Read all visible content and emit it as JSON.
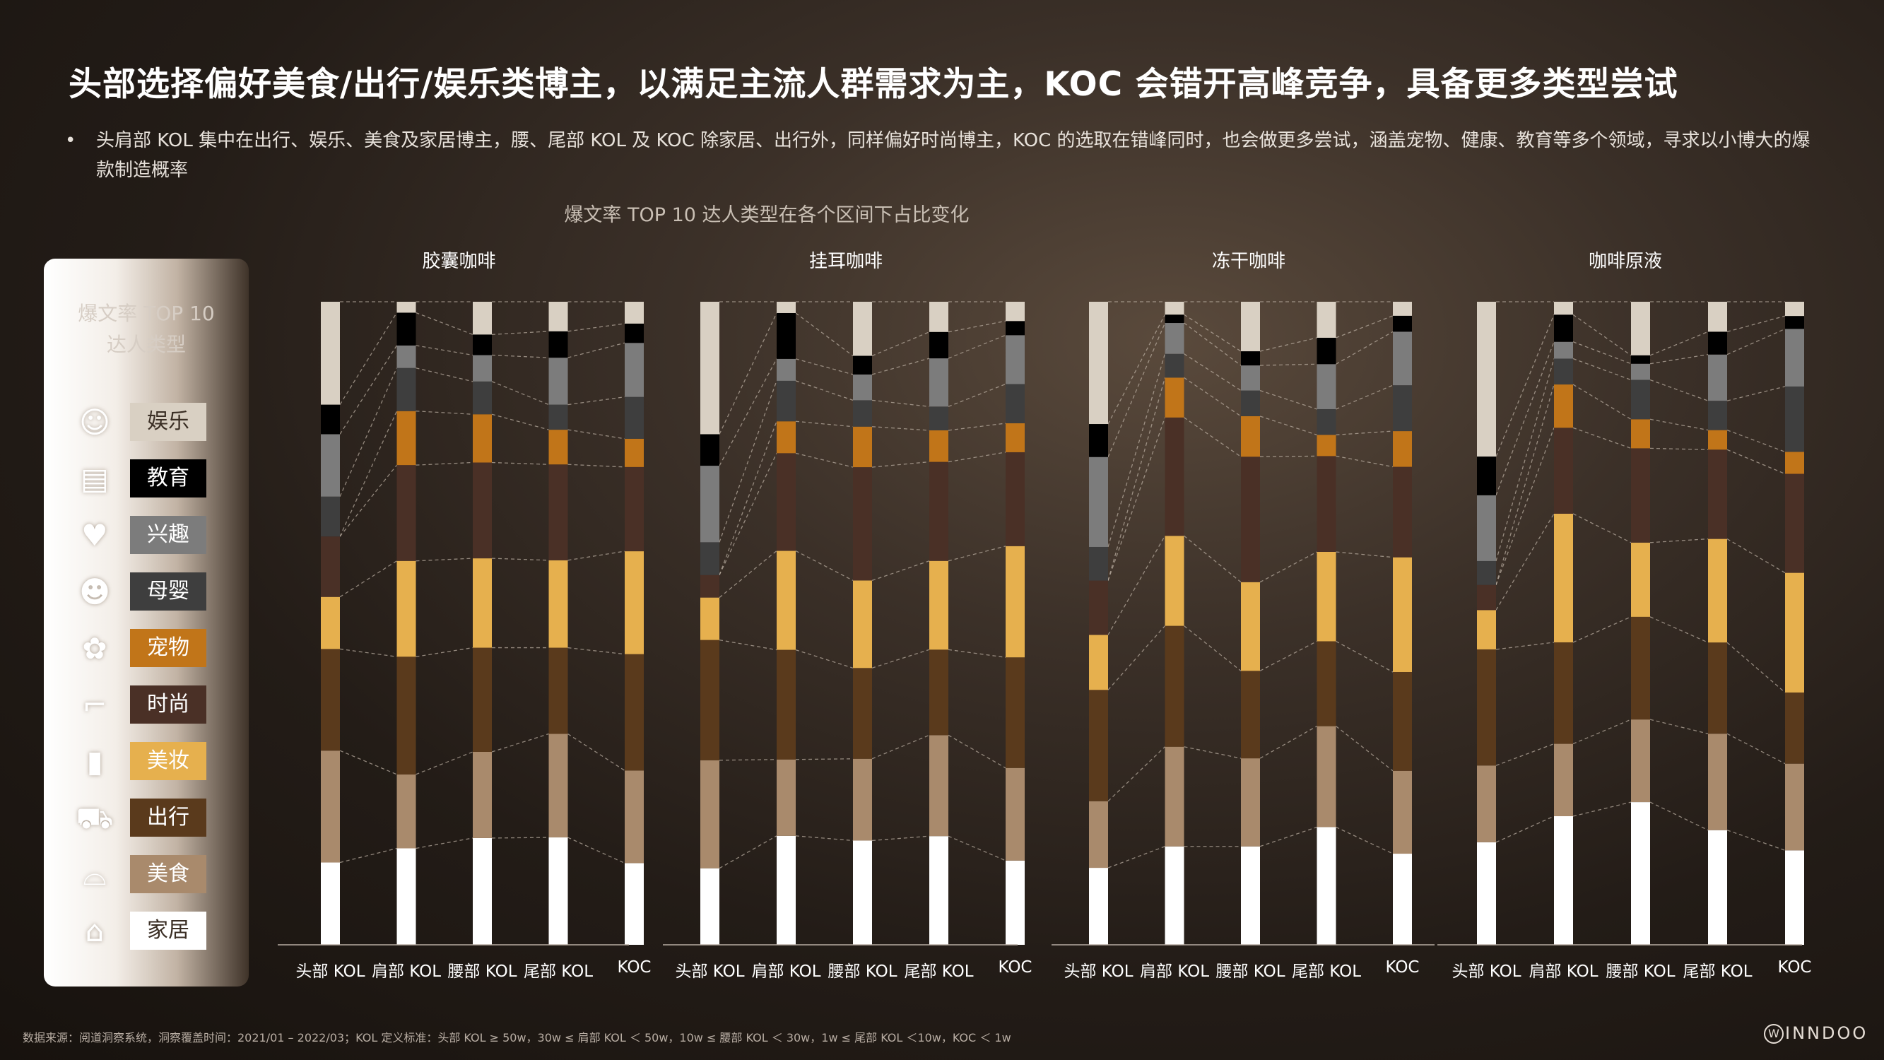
{
  "title": "头部选择偏好美食/出行/娱乐类博主，以满足主流人群需求为主，KOC 会错开高峰竞争，具备更多类型尝试",
  "bullet": "头肩部 KOL 集中在出行、娱乐、美食及家居博主，腰、尾部 KOL 及 KOC 除家居、出行外，同样偏好时尚博主，KOC 的选取在错峰同时，也会做更多尝试，涵盖宠物、健康、教育等多个领域，寻求以小博大的爆款制造概率",
  "legend": {
    "title_line1": "爆文率 TOP 10",
    "title_line2": "达人类型",
    "items": [
      {
        "label": "娱乐",
        "icon": "smiley-icon",
        "glyph": "☺",
        "color": "#d9d0c3",
        "text_color": "#3a2e24"
      },
      {
        "label": "教育",
        "icon": "books-icon",
        "glyph": "▤",
        "color": "#000000",
        "text_color": "#ffffff"
      },
      {
        "label": "兴趣",
        "icon": "heart-chat-icon",
        "glyph": "♥",
        "color": "#7c7c7c",
        "text_color": "#ffffff"
      },
      {
        "label": "母婴",
        "icon": "baby-icon",
        "glyph": "☻",
        "color": "#3e3e3e",
        "text_color": "#ffffff"
      },
      {
        "label": "宠物",
        "icon": "paw-icon",
        "glyph": "✿",
        "color": "#c17519",
        "text_color": "#ffffff"
      },
      {
        "label": "时尚",
        "icon": "high-heel-icon",
        "glyph": "⌐",
        "color": "#4a3026",
        "text_color": "#ffffff"
      },
      {
        "label": "美妆",
        "icon": "lipstick-icon",
        "glyph": "▮",
        "color": "#e6b04e",
        "text_color": "#ffffff"
      },
      {
        "label": "出行",
        "icon": "car-icon",
        "glyph": "⛟",
        "color": "#5a3a1c",
        "text_color": "#ffffff"
      },
      {
        "label": "美食",
        "icon": "food-cloche-icon",
        "glyph": "⌓",
        "color": "#a98a6c",
        "text_color": "#ffffff"
      },
      {
        "label": "家居",
        "icon": "house-icon",
        "glyph": "⌂",
        "color": "#ffffff",
        "text_color": "#3a2e24"
      }
    ]
  },
  "chart_data": {
    "type": "stacked-bar",
    "title": "爆文率 TOP 10  达人类型在各个区间下占比变化",
    "unit": "share",
    "categories": [
      "头部 KOL",
      "肩部 KOL",
      "腰部 KOL",
      "尾部 KOL",
      "KOC"
    ],
    "stack_order_bottom_to_top": [
      "家居",
      "美食",
      "出行",
      "美妆",
      "时尚",
      "宠物",
      "母婴",
      "兴趣",
      "教育",
      "娱乐"
    ],
    "panels": [
      {
        "name": "胶囊咖啡",
        "values": [
          [
            0.128,
            0.174,
            0.158,
            0.081,
            0.094,
            0.0,
            0.062,
            0.097,
            0.046,
            0.16
          ],
          [
            0.15,
            0.115,
            0.183,
            0.149,
            0.149,
            0.084,
            0.067,
            0.035,
            0.051,
            0.017
          ],
          [
            0.166,
            0.134,
            0.162,
            0.139,
            0.149,
            0.075,
            0.051,
            0.041,
            0.032,
            0.051
          ],
          [
            0.167,
            0.161,
            0.134,
            0.136,
            0.149,
            0.054,
            0.039,
            0.073,
            0.041,
            0.046
          ],
          [
            0.127,
            0.144,
            0.181,
            0.16,
            0.131,
            0.044,
            0.065,
            0.084,
            0.03,
            0.034
          ]
        ]
      },
      {
        "name": "挂耳咖啡",
        "values": [
          [
            0.119,
            0.168,
            0.187,
            0.066,
            0.035,
            0.0,
            0.051,
            0.119,
            0.049,
            0.206
          ],
          [
            0.164,
            0.115,
            0.165,
            0.149,
            0.147,
            0.048,
            0.061,
            0.033,
            0.069,
            0.017
          ],
          [
            0.162,
            0.127,
            0.141,
            0.136,
            0.176,
            0.063,
            0.041,
            0.04,
            0.029,
            0.084
          ],
          [
            0.169,
            0.157,
            0.133,
            0.138,
            0.154,
            0.049,
            0.037,
            0.075,
            0.041,
            0.047
          ],
          [
            0.131,
            0.144,
            0.172,
            0.173,
            0.146,
            0.045,
            0.061,
            0.076,
            0.022,
            0.03
          ]
        ]
      },
      {
        "name": "冻干咖啡",
        "values": [
          [
            0.119,
            0.103,
            0.172,
            0.085,
            0.084,
            0.0,
            0.052,
            0.139,
            0.051,
            0.189
          ],
          [
            0.153,
            0.155,
            0.188,
            0.14,
            0.184,
            0.062,
            0.037,
            0.048,
            0.013,
            0.02
          ],
          [
            0.153,
            0.137,
            0.136,
            0.138,
            0.195,
            0.063,
            0.04,
            0.039,
            0.022,
            0.077
          ],
          [
            0.183,
            0.157,
            0.132,
            0.139,
            0.149,
            0.033,
            0.04,
            0.07,
            0.041,
            0.056
          ],
          [
            0.143,
            0.13,
            0.155,
            0.18,
            0.142,
            0.056,
            0.072,
            0.084,
            0.025,
            0.022
          ]
        ]
      },
      {
        "name": "咖啡原液",
        "values": [
          [
            0.159,
            0.119,
            0.18,
            0.061,
            0.039,
            0.0,
            0.037,
            0.102,
            0.06,
            0.24
          ],
          [
            0.199,
            0.112,
            0.157,
            0.199,
            0.133,
            0.067,
            0.04,
            0.026,
            0.042,
            0.02
          ],
          [
            0.221,
            0.128,
            0.159,
            0.115,
            0.146,
            0.045,
            0.061,
            0.025,
            0.013,
            0.083
          ],
          [
            0.176,
            0.148,
            0.14,
            0.159,
            0.137,
            0.03,
            0.045,
            0.071,
            0.035,
            0.046
          ],
          [
            0.146,
            0.134,
            0.11,
            0.185,
            0.153,
            0.034,
            0.101,
            0.089,
            0.02,
            0.022
          ]
        ]
      }
    ]
  },
  "footer": "数据来源：阅道洞察系统，洞察覆盖时间：2021/01 – 2022/03；KOL 定义标准：头部 KOL ≥ 50w，30w ≤ 肩部 KOL ＜ 50w，10w ≤ 腰部 KOL ＜ 30w，1w ≤ 尾部 KOL ＜10w，KOC ＜ 1w",
  "logo": "INNDOO",
  "logo_mark": "W"
}
